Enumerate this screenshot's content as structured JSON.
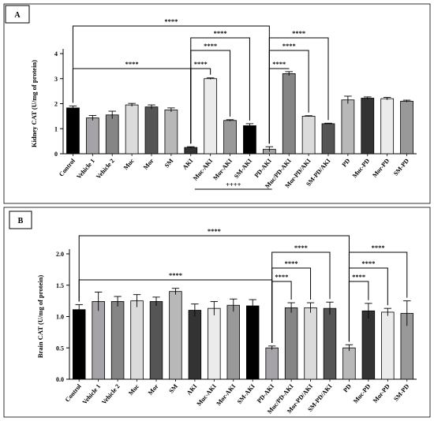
{
  "chart_data": [
    {
      "type": "bar",
      "panel_label": "A",
      "ylabel": "Kidney CAT  (U/mg of protein)",
      "ylim": [
        0,
        4
      ],
      "yticks": [
        0,
        1,
        2,
        3,
        4
      ],
      "categories": [
        "Control",
        "Vehicle 1",
        "Vehicle 2",
        "Muc",
        "Mor",
        "SM",
        "AKI",
        "Muc-AKI",
        "Mor-AKI",
        "SM-AKI",
        "PD-AKI",
        "Muc/PD-AKI",
        "Mor-PD/AKI",
        "SM-PD/AKI",
        "PD",
        "Muc-PD",
        "Mor-PD",
        "SM-PD"
      ],
      "values": [
        1.83,
        1.43,
        1.55,
        1.95,
        1.87,
        1.75,
        0.25,
        3.0,
        1.33,
        1.12,
        0.18,
        3.2,
        1.5,
        1.2,
        2.15,
        2.22,
        2.2,
        2.1
      ],
      "errors": [
        0.08,
        0.1,
        0.15,
        0.06,
        0.08,
        0.08,
        0.03,
        0.03,
        0.03,
        0.08,
        0.1,
        0.08,
        0.02,
        0.02,
        0.15,
        0.05,
        0.05,
        0.04
      ],
      "bar_colors": [
        "#000000",
        "#a6a3a8",
        "#858585",
        "#dbdbdb",
        "#555555",
        "#b8b8b8",
        "#333333",
        "#ebebeb",
        "#999999",
        "#000000",
        "#a6a3a8",
        "#858585",
        "#dbdbdb",
        "#555555",
        "#b8b8b8",
        "#333333",
        "#ebebeb",
        "#999999"
      ],
      "significance": [
        {
          "from": 0,
          "to": 10,
          "label": "****",
          "level": 4
        },
        {
          "from": 0,
          "to": 6,
          "label": "****",
          "level": 1
        },
        {
          "from": 6,
          "to": 9,
          "label": "****",
          "level": 3
        },
        {
          "from": 6,
          "to": 8,
          "label": "****",
          "level": 2
        },
        {
          "from": 6,
          "to": 7,
          "label": "****",
          "level": 1
        },
        {
          "from": 10,
          "to": 13,
          "label": "****",
          "level": 3
        },
        {
          "from": 10,
          "to": 12,
          "label": "****",
          "level": 2
        },
        {
          "from": 10,
          "to": 11,
          "label": "****",
          "level": 1
        },
        {
          "from": 10,
          "to": 14,
          "label": "####",
          "level": 5,
          "style": "bar"
        }
      ]
    },
    {
      "type": "bar",
      "panel_label": "B",
      "ylabel": "Brain CAT  (U/mg of protein)",
      "ylim": [
        0,
        2.0
      ],
      "yticks": [
        0.0,
        0.5,
        1.0,
        1.5,
        2.0
      ],
      "categories": [
        "Control",
        "Vehicle 1",
        "Vehicle 2",
        "Muc",
        "Mor",
        "SM",
        "AKI",
        "Muc-AKI",
        "Mor-AKI",
        "SM-AKI",
        "PD-AKI",
        "Muc/PD-AKI",
        "Mor-PD/AKI",
        "SM-PD/AKI",
        "PD",
        "Muc-PD",
        "Mor-PD",
        "SM-PD"
      ],
      "values": [
        1.11,
        1.24,
        1.24,
        1.25,
        1.24,
        1.4,
        1.1,
        1.13,
        1.18,
        1.17,
        0.5,
        1.14,
        1.14,
        1.13,
        0.5,
        1.09,
        1.07,
        1.05
      ],
      "errors": [
        0.08,
        0.15,
        0.08,
        0.1,
        0.07,
        0.05,
        0.1,
        0.11,
        0.1,
        0.1,
        0.03,
        0.08,
        0.08,
        0.1,
        0.05,
        0.12,
        0.06,
        0.2
      ],
      "bar_colors": [
        "#000000",
        "#a6a3a8",
        "#858585",
        "#dbdbdb",
        "#555555",
        "#b8b8b8",
        "#333333",
        "#ebebeb",
        "#999999",
        "#000000",
        "#a6a3a8",
        "#858585",
        "#dbdbdb",
        "#555555",
        "#b8b8b8",
        "#333333",
        "#ebebeb",
        "#999999"
      ],
      "significance": [
        {
          "from": 0,
          "to": 14,
          "label": "****",
          "level": 5
        },
        {
          "from": 0,
          "to": 10,
          "label": "****",
          "level": 1
        },
        {
          "from": 10,
          "to": 13,
          "label": "****",
          "level": 3
        },
        {
          "from": 10,
          "to": 12,
          "label": "****",
          "level": 2
        },
        {
          "from": 10,
          "to": 11,
          "label": "****",
          "level": 1
        },
        {
          "from": 14,
          "to": 17,
          "label": "****",
          "level": 3
        },
        {
          "from": 14,
          "to": 16,
          "label": "****",
          "level": 2
        },
        {
          "from": 14,
          "to": 15,
          "label": "****",
          "level": 1
        },
        {
          "from": 6,
          "to": 10,
          "label": "++++",
          "level": 6,
          "style": "bar"
        }
      ]
    }
  ]
}
